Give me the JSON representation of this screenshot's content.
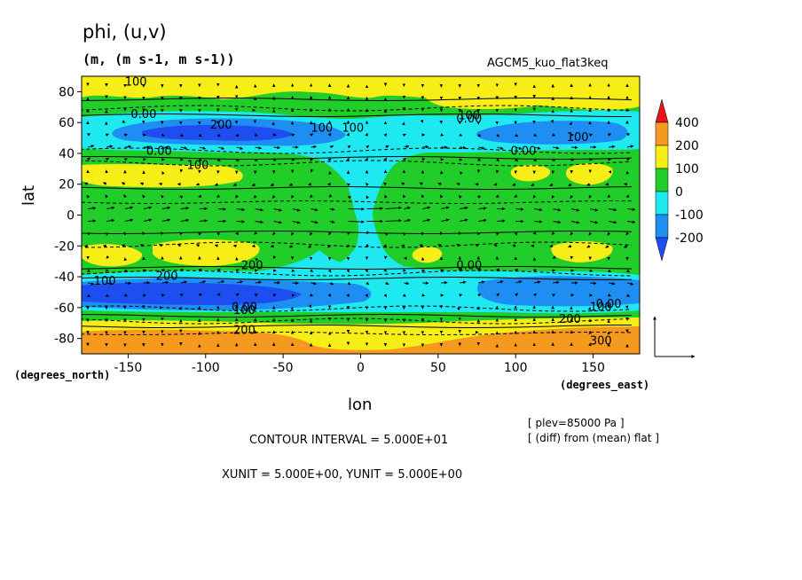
{
  "chart_data": {
    "type": "heatmap",
    "title": "phi, (u,v)",
    "units_label": "(m, (m s-1, m s-1))",
    "model_label": "AGCM5_kuo_flat3keq",
    "xlabel": "lon",
    "ylabel": "lat",
    "x_unit_note": "(degrees_east)",
    "y_unit_note": "(degrees_north)",
    "xlim": [
      -180,
      180
    ],
    "ylim": [
      -90,
      90
    ],
    "x_ticks": [
      -150,
      -100,
      -50,
      0,
      50,
      100,
      150
    ],
    "y_ticks": [
      80,
      60,
      40,
      20,
      0,
      -20,
      -40,
      -60,
      -80
    ],
    "level_info": "[ plev=85000 Pa ]",
    "diff_info": "[ (diff) from (mean) flat ]",
    "contour_interval": "CONTOUR INTERVAL = 5.000E+01",
    "vector_units": "XUNIT = 5.000E+00, YUNIT = 5.000E+00",
    "colorbar": {
      "levels": [
        "400",
        "200",
        "100",
        "0",
        "-100",
        "-200"
      ],
      "colors": [
        "#e8141c",
        "#f59a1f",
        "#f8ee17",
        "#21cd28",
        "#1fe9f0",
        "#1e8ef2",
        "#1e4df2"
      ]
    },
    "contour_labels": [
      "100",
      "0.00",
      "200",
      "100",
      "0.00",
      "100",
      "100",
      "0.00",
      "100",
      "100",
      "0.00",
      "0.00",
      "200",
      "100",
      "200",
      "0.00",
      "100",
      "200",
      "300",
      "0.00",
      "100",
      "200"
    ]
  }
}
